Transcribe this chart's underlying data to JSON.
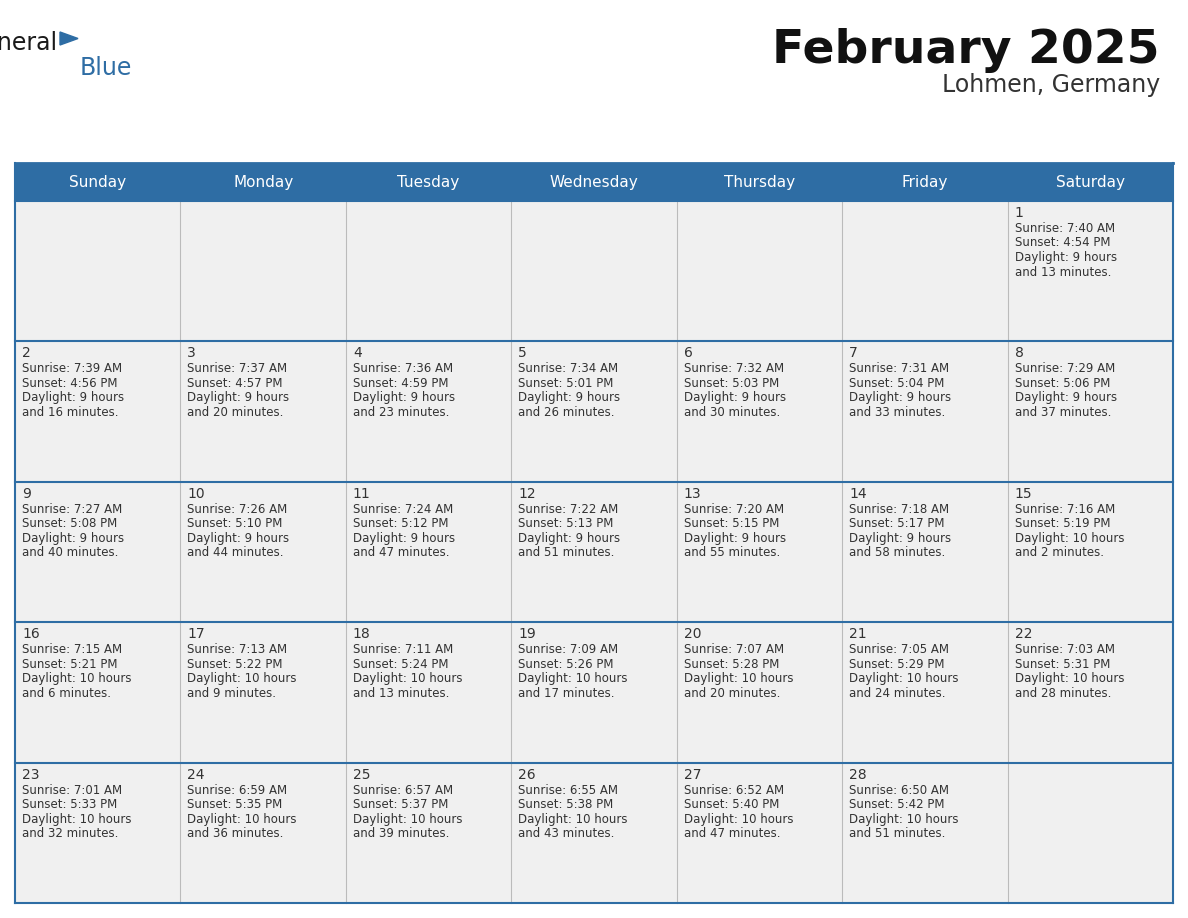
{
  "title": "February 2025",
  "subtitle": "Lohmen, Germany",
  "header_bg": "#2E6DA4",
  "header_text_color": "#FFFFFF",
  "cell_bg_light": "#F0F0F0",
  "border_color": "#2E6DA4",
  "separator_color": "#2E6DA4",
  "text_color": "#333333",
  "day_names": [
    "Sunday",
    "Monday",
    "Tuesday",
    "Wednesday",
    "Thursday",
    "Friday",
    "Saturday"
  ],
  "calendar_data": [
    [
      null,
      null,
      null,
      null,
      null,
      null,
      {
        "day": 1,
        "sunrise": "7:40 AM",
        "sunset": "4:54 PM",
        "daylight_line1": "Daylight: 9 hours",
        "daylight_line2": "and 13 minutes."
      }
    ],
    [
      {
        "day": 2,
        "sunrise": "7:39 AM",
        "sunset": "4:56 PM",
        "daylight_line1": "Daylight: 9 hours",
        "daylight_line2": "and 16 minutes."
      },
      {
        "day": 3,
        "sunrise": "7:37 AM",
        "sunset": "4:57 PM",
        "daylight_line1": "Daylight: 9 hours",
        "daylight_line2": "and 20 minutes."
      },
      {
        "day": 4,
        "sunrise": "7:36 AM",
        "sunset": "4:59 PM",
        "daylight_line1": "Daylight: 9 hours",
        "daylight_line2": "and 23 minutes."
      },
      {
        "day": 5,
        "sunrise": "7:34 AM",
        "sunset": "5:01 PM",
        "daylight_line1": "Daylight: 9 hours",
        "daylight_line2": "and 26 minutes."
      },
      {
        "day": 6,
        "sunrise": "7:32 AM",
        "sunset": "5:03 PM",
        "daylight_line1": "Daylight: 9 hours",
        "daylight_line2": "and 30 minutes."
      },
      {
        "day": 7,
        "sunrise": "7:31 AM",
        "sunset": "5:04 PM",
        "daylight_line1": "Daylight: 9 hours",
        "daylight_line2": "and 33 minutes."
      },
      {
        "day": 8,
        "sunrise": "7:29 AM",
        "sunset": "5:06 PM",
        "daylight_line1": "Daylight: 9 hours",
        "daylight_line2": "and 37 minutes."
      }
    ],
    [
      {
        "day": 9,
        "sunrise": "7:27 AM",
        "sunset": "5:08 PM",
        "daylight_line1": "Daylight: 9 hours",
        "daylight_line2": "and 40 minutes."
      },
      {
        "day": 10,
        "sunrise": "7:26 AM",
        "sunset": "5:10 PM",
        "daylight_line1": "Daylight: 9 hours",
        "daylight_line2": "and 44 minutes."
      },
      {
        "day": 11,
        "sunrise": "7:24 AM",
        "sunset": "5:12 PM",
        "daylight_line1": "Daylight: 9 hours",
        "daylight_line2": "and 47 minutes."
      },
      {
        "day": 12,
        "sunrise": "7:22 AM",
        "sunset": "5:13 PM",
        "daylight_line1": "Daylight: 9 hours",
        "daylight_line2": "and 51 minutes."
      },
      {
        "day": 13,
        "sunrise": "7:20 AM",
        "sunset": "5:15 PM",
        "daylight_line1": "Daylight: 9 hours",
        "daylight_line2": "and 55 minutes."
      },
      {
        "day": 14,
        "sunrise": "7:18 AM",
        "sunset": "5:17 PM",
        "daylight_line1": "Daylight: 9 hours",
        "daylight_line2": "and 58 minutes."
      },
      {
        "day": 15,
        "sunrise": "7:16 AM",
        "sunset": "5:19 PM",
        "daylight_line1": "Daylight: 10 hours",
        "daylight_line2": "and 2 minutes."
      }
    ],
    [
      {
        "day": 16,
        "sunrise": "7:15 AM",
        "sunset": "5:21 PM",
        "daylight_line1": "Daylight: 10 hours",
        "daylight_line2": "and 6 minutes."
      },
      {
        "day": 17,
        "sunrise": "7:13 AM",
        "sunset": "5:22 PM",
        "daylight_line1": "Daylight: 10 hours",
        "daylight_line2": "and 9 minutes."
      },
      {
        "day": 18,
        "sunrise": "7:11 AM",
        "sunset": "5:24 PM",
        "daylight_line1": "Daylight: 10 hours",
        "daylight_line2": "and 13 minutes."
      },
      {
        "day": 19,
        "sunrise": "7:09 AM",
        "sunset": "5:26 PM",
        "daylight_line1": "Daylight: 10 hours",
        "daylight_line2": "and 17 minutes."
      },
      {
        "day": 20,
        "sunrise": "7:07 AM",
        "sunset": "5:28 PM",
        "daylight_line1": "Daylight: 10 hours",
        "daylight_line2": "and 20 minutes."
      },
      {
        "day": 21,
        "sunrise": "7:05 AM",
        "sunset": "5:29 PM",
        "daylight_line1": "Daylight: 10 hours",
        "daylight_line2": "and 24 minutes."
      },
      {
        "day": 22,
        "sunrise": "7:03 AM",
        "sunset": "5:31 PM",
        "daylight_line1": "Daylight: 10 hours",
        "daylight_line2": "and 28 minutes."
      }
    ],
    [
      {
        "day": 23,
        "sunrise": "7:01 AM",
        "sunset": "5:33 PM",
        "daylight_line1": "Daylight: 10 hours",
        "daylight_line2": "and 32 minutes."
      },
      {
        "day": 24,
        "sunrise": "6:59 AM",
        "sunset": "5:35 PM",
        "daylight_line1": "Daylight: 10 hours",
        "daylight_line2": "and 36 minutes."
      },
      {
        "day": 25,
        "sunrise": "6:57 AM",
        "sunset": "5:37 PM",
        "daylight_line1": "Daylight: 10 hours",
        "daylight_line2": "and 39 minutes."
      },
      {
        "day": 26,
        "sunrise": "6:55 AM",
        "sunset": "5:38 PM",
        "daylight_line1": "Daylight: 10 hours",
        "daylight_line2": "and 43 minutes."
      },
      {
        "day": 27,
        "sunrise": "6:52 AM",
        "sunset": "5:40 PM",
        "daylight_line1": "Daylight: 10 hours",
        "daylight_line2": "and 47 minutes."
      },
      {
        "day": 28,
        "sunrise": "6:50 AM",
        "sunset": "5:42 PM",
        "daylight_line1": "Daylight: 10 hours",
        "daylight_line2": "and 51 minutes."
      },
      null
    ]
  ],
  "logo_text1": "General",
  "logo_text2": "Blue",
  "logo_color1": "#1a1a1a",
  "logo_color2": "#2E6DA4",
  "logo_triangle_color": "#2E6DA4",
  "title_fontsize": 34,
  "subtitle_fontsize": 17,
  "day_header_fontsize": 11,
  "day_num_fontsize": 10,
  "cell_text_fontsize": 8.5
}
